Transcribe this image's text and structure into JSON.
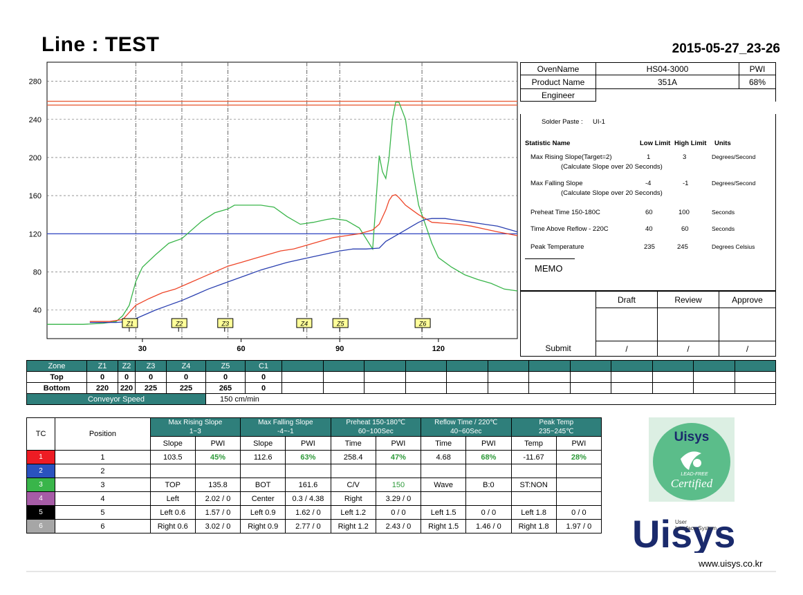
{
  "header": {
    "title": "Line : TEST",
    "date": "2015-05-27_23-26"
  },
  "chart_data": {
    "type": "line",
    "xlim": [
      1,
      144
    ],
    "ylim": [
      10,
      300
    ],
    "x_ticks": [
      30,
      60,
      90,
      120
    ],
    "y_ticks": [
      40,
      80,
      120,
      160,
      200,
      240,
      280
    ],
    "y_tick_labels": [
      "40",
      "80",
      "120",
      "160",
      "200",
      "240",
      "280"
    ],
    "vertical_lines": [
      28,
      42,
      56,
      80,
      90,
      115
    ],
    "zone_markers": [
      "Z1",
      "Z2",
      "Z3",
      "Z4",
      "Z5",
      "Z6"
    ],
    "zone_marker_x": [
      26,
      41,
      55,
      79,
      90,
      115
    ],
    "horizontal_lines": [
      {
        "y": 259,
        "color": "#e8603c"
      },
      {
        "y": 255,
        "color": "#e8603c"
      },
      {
        "y": 120,
        "color": "#3b4fc4"
      }
    ],
    "series": [
      {
        "color": "#39b54a",
        "x": [
          1,
          12,
          18,
          22,
          24,
          26,
          28,
          30,
          34,
          38,
          42,
          48,
          52,
          56,
          58,
          62,
          66,
          70,
          74,
          78,
          82,
          86,
          88,
          92,
          96,
          100,
          102,
          103,
          104,
          105,
          106,
          107,
          108,
          110,
          112,
          114,
          116,
          118,
          120,
          124,
          128,
          132,
          136,
          140,
          144
        ],
        "y": [
          25,
          25,
          26,
          28,
          34,
          45,
          70,
          85,
          98,
          110,
          115,
          133,
          142,
          146,
          150,
          150,
          150,
          148,
          138,
          130,
          132,
          135,
          136,
          134,
          126,
          104,
          202,
          185,
          178,
          200,
          240,
          258,
          258,
          240,
          190,
          150,
          130,
          110,
          95,
          85,
          77,
          72,
          68,
          62,
          60
        ]
      },
      {
        "color": "#ee4528",
        "x": [
          14,
          20,
          24,
          28,
          32,
          36,
          40,
          44,
          48,
          52,
          56,
          60,
          64,
          68,
          72,
          76,
          80,
          84,
          88,
          92,
          96,
          98,
          100,
          102,
          104,
          105,
          106,
          107,
          108,
          110,
          112,
          114,
          116,
          118,
          122,
          126,
          130,
          134,
          138,
          144
        ],
        "y": [
          28,
          28,
          30,
          45,
          52,
          58,
          62,
          68,
          74,
          80,
          86,
          90,
          94,
          98,
          102,
          104,
          108,
          112,
          116,
          118,
          120,
          122,
          124,
          130,
          145,
          155,
          160,
          161,
          158,
          150,
          145,
          140,
          136,
          132,
          131,
          130,
          128,
          125,
          122,
          118
        ]
      },
      {
        "color": "#2a3fb0",
        "x": [
          14,
          22,
          26,
          30,
          34,
          38,
          42,
          46,
          50,
          54,
          58,
          62,
          66,
          70,
          74,
          78,
          82,
          86,
          90,
          94,
          98,
          102,
          104,
          106,
          108,
          110,
          112,
          114,
          116,
          118,
          122,
          126,
          130,
          134,
          138,
          144
        ],
        "y": [
          27,
          27,
          28,
          34,
          40,
          45,
          50,
          56,
          62,
          67,
          72,
          77,
          82,
          86,
          90,
          93,
          96,
          99,
          102,
          104,
          104,
          105,
          112,
          116,
          120,
          124,
          128,
          132,
          135,
          136,
          136,
          134,
          132,
          130,
          128,
          122
        ]
      }
    ]
  },
  "info": {
    "oven_label": "OvenName",
    "oven_value": "HS04-3000",
    "pwi_label": "PWI",
    "product_label": "Product Name",
    "product_value": "351A",
    "pwi_value": "68%",
    "engineer_label": "Engineer"
  },
  "stats": {
    "solder_paste_label": "Solder Paste :",
    "solder_paste_value": "UI-1",
    "col_name": "Statistic Name",
    "col_low": "Low Limit",
    "col_high": "High Limit",
    "col_units": "Units",
    "rows": [
      {
        "name": "Max Rising Slope(Target=2)",
        "sub": "(Calculate Slope over 20 Seconds)",
        "low": "1",
        "high": "3",
        "units": "Degrees/Second"
      },
      {
        "name": "Max Falling Slope",
        "sub": "(Calculate Slope over 20 Seconds)",
        "low": "-4",
        "high": "-1",
        "units": "Degrees/Second"
      },
      {
        "name": "Preheat Time 150-180C",
        "sub": "",
        "low": "60",
        "high": "100",
        "units": "Seconds"
      },
      {
        "name": "Time Above Reflow - 220C",
        "sub": "",
        "low": "40",
        "high": "60",
        "units": "Seconds"
      },
      {
        "name": "Peak Temperature",
        "sub": "",
        "low": "235",
        "high": "245",
        "units": "Degrees Celsius"
      }
    ],
    "memo_label": "MEMO"
  },
  "approval": {
    "draft": "Draft",
    "review": "Review",
    "approve": "Approve",
    "submit": "Submit",
    "slash": "/"
  },
  "zones": {
    "header": [
      "Zone",
      "Z1",
      "Z2",
      "Z3",
      "Z4",
      "Z5",
      "C1"
    ],
    "top_label": "Top",
    "top": [
      "0",
      "0",
      "0",
      "0",
      "0",
      "0"
    ],
    "bottom_label": "Bottom",
    "bottom": [
      "220",
      "220",
      "225",
      "225",
      "265",
      "0"
    ],
    "conveyor_label": "Conveyor Speed",
    "conveyor_value": "150 cm/min"
  },
  "tc": {
    "tc_label": "TC",
    "position_label": "Position",
    "groups": [
      {
        "title": "Max Rising Slope",
        "range": "1~3"
      },
      {
        "title": "Max Falling Slope",
        "range": "-4~-1"
      },
      {
        "title": "Preheat 150-180℃",
        "range": "60~100Sec"
      },
      {
        "title": "Reflow Time / 220℃",
        "range": "40~60Sec"
      },
      {
        "title": "Peak Temp",
        "range": "235~245℃"
      }
    ],
    "sub_headers": [
      "Slope",
      "PWI",
      "Slope",
      "PWI",
      "Time",
      "PWI",
      "Time",
      "PWI",
      "Temp",
      "PWI"
    ],
    "rows": [
      {
        "tc": "1",
        "color": "#ed1c24",
        "pos": "1",
        "cells": [
          "103.5",
          "45%",
          "112.6",
          "63%",
          "258.4",
          "47%",
          "4.68",
          "68%",
          "-11.67",
          "28%"
        ]
      },
      {
        "tc": "2",
        "color": "#2a52be",
        "pos": "2",
        "cells": [
          "",
          "",
          "",
          "",
          "",
          "",
          "",
          "",
          "",
          ""
        ]
      },
      {
        "tc": "3",
        "color": "#39b54a",
        "pos": "3",
        "cells": [
          "TOP",
          "135.8",
          "BOT",
          "161.6",
          "C/V",
          "150",
          "Wave",
          "B:0",
          "ST:NON",
          ""
        ]
      },
      {
        "tc": "4",
        "color": "#a65ca6",
        "pos": "4",
        "cells": [
          "Left",
          "2.02 / 0",
          "Center",
          "0.3 / 4.38",
          "Right",
          "3.29 / 0",
          "",
          "",
          "",
          ""
        ]
      },
      {
        "tc": "5",
        "color": "#000000",
        "pos": "5",
        "cells": [
          "Left 0.6",
          "1.57 / 0",
          "Left 0.9",
          "1.62 / 0",
          "Left 1.2",
          "0 / 0",
          "Left 1.5",
          "0 / 0",
          "Left 1.8",
          "0 / 0"
        ]
      },
      {
        "tc": "6",
        "color": "#a6a6a6",
        "pos": "6",
        "cells": [
          "Right 0.6",
          "3.02 / 0",
          "Right 0.9",
          "2.77 / 0",
          "Right 1.2",
          "2.43 / 0",
          "Right 1.5",
          "1.46 / 0",
          "Right 1.8",
          "1.97 / 0"
        ]
      }
    ]
  },
  "logos": {
    "badge_brand": "Uisys",
    "badge_text": "Certified",
    "badge_small": "LEAD-FREE",
    "brand_main": "Uisys",
    "brand_sub1": "User",
    "brand_sub2": "Interface System",
    "url": "www.uisys.co.kr"
  }
}
